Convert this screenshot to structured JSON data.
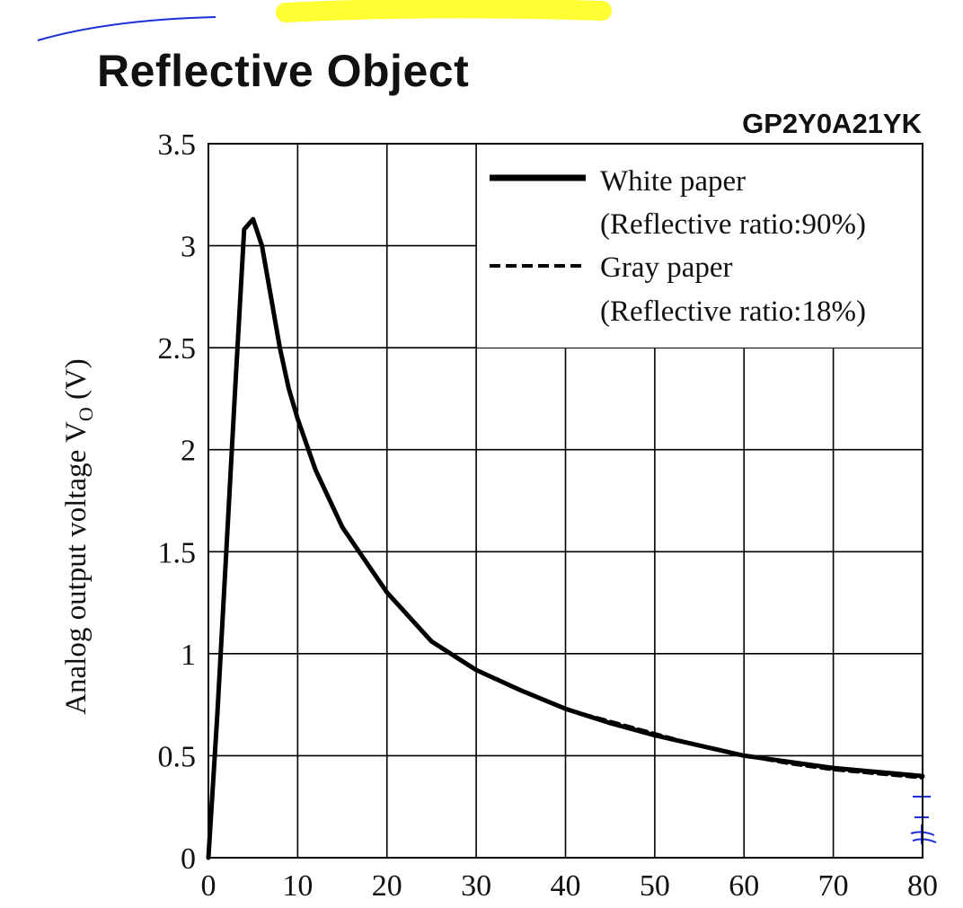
{
  "page": {
    "title": "Reflective Object",
    "part_number": "GP2Y0A21YK",
    "highlight_color": "#ffff33",
    "annotation_color": "#1a2fd6"
  },
  "chart_data": {
    "type": "line",
    "title": "Reflective Object",
    "subtitle": "GP2Y0A21YK",
    "xlabel": "",
    "ylabel": "Analog output voltage V",
    "ylabel_subscript": "O",
    "ylabel_unit": "(V)",
    "xlim": [
      0,
      80
    ],
    "ylim": [
      0,
      3.5
    ],
    "xticks": [
      0,
      10,
      20,
      30,
      40,
      50,
      60,
      70,
      80
    ],
    "yticks": [
      0,
      0.5,
      1,
      1.5,
      2,
      2.5,
      3,
      3.5
    ],
    "xtick_labels": [
      "0",
      "10",
      "20",
      "30",
      "40",
      "50",
      "60",
      "70",
      "80"
    ],
    "ytick_labels": [
      "0",
      "0.5",
      "1",
      "1.5",
      "2",
      "2.5",
      "3",
      "3.5"
    ],
    "grid": true,
    "legend_position": "top-right",
    "series": [
      {
        "name": "White paper",
        "name_note": "(Reflective ratio:90%)",
        "style": "solid",
        "color": "#000000",
        "x": [
          0,
          1,
          2,
          3,
          4,
          5,
          6,
          7,
          8,
          9,
          10,
          12,
          15,
          20,
          25,
          30,
          35,
          40,
          45,
          50,
          55,
          60,
          65,
          70,
          75,
          80
        ],
        "y": [
          0.0,
          0.7,
          1.5,
          2.3,
          3.08,
          3.13,
          3.0,
          2.75,
          2.5,
          2.3,
          2.15,
          1.9,
          1.62,
          1.3,
          1.06,
          0.92,
          0.82,
          0.73,
          0.66,
          0.6,
          0.55,
          0.5,
          0.47,
          0.44,
          0.42,
          0.4
        ]
      },
      {
        "name": "Gray paper",
        "name_note": "(Reflective ratio:18%)",
        "style": "dashed",
        "color": "#000000",
        "x": [
          0,
          1,
          2,
          3,
          4,
          5,
          6,
          7,
          8,
          9,
          10,
          12,
          15,
          20,
          25,
          30,
          35,
          40,
          45,
          50,
          55,
          60,
          65,
          70,
          75,
          80
        ],
        "y": [
          0.0,
          0.7,
          1.5,
          2.3,
          3.08,
          3.13,
          3.0,
          2.75,
          2.5,
          2.3,
          2.15,
          1.9,
          1.62,
          1.3,
          1.06,
          0.92,
          0.82,
          0.73,
          0.67,
          0.61,
          0.55,
          0.5,
          0.46,
          0.43,
          0.41,
          0.39
        ]
      }
    ]
  }
}
